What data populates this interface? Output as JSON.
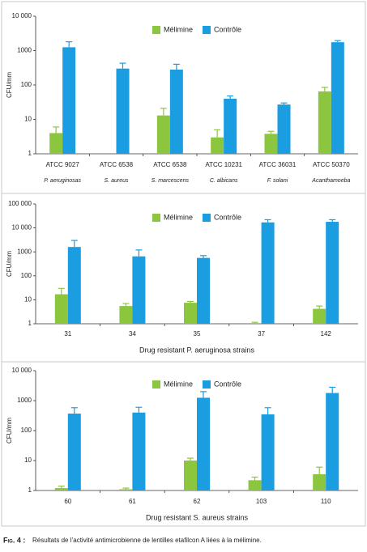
{
  "chart_data": [
    {
      "type": "bar",
      "y_label": "CFU/mm",
      "log_scale": true,
      "categories": [
        "ATCC 9027",
        "ATCC 6538",
        "ATCC 6538",
        "ATCC 10231",
        "ATCC 36031",
        "ATCC 50370"
      ],
      "species": [
        "P. aeruginosas",
        "S. aureus",
        "S. marcescens",
        "C. albicans",
        "F. solani",
        "Acanthamoeba"
      ],
      "series": [
        {
          "name": "Mélimine",
          "color": "#8cc63e",
          "values": [
            4,
            null,
            13,
            3,
            3.8,
            65
          ],
          "errors": [
            2,
            null,
            8,
            2,
            0.7,
            20
          ]
        },
        {
          "name": "Contrôle",
          "color": "#1b9de2",
          "values": [
            1250,
            300,
            280,
            40,
            27,
            1750
          ],
          "errors": [
            550,
            130,
            120,
            8,
            3,
            200
          ]
        }
      ],
      "ylim": [
        1,
        10000
      ],
      "yticks": [
        1,
        10,
        100,
        1000,
        {
          "value": 10000,
          "label": "10 000"
        }
      ]
    },
    {
      "type": "bar",
      "y_label": "CFU/mm",
      "x_label": "Drug resistant P. aeruginosa strains",
      "log_scale": true,
      "categories": [
        "31",
        "34",
        "35",
        "37",
        "142"
      ],
      "series": [
        {
          "name": "Mélimine",
          "color": "#8cc63e",
          "values": [
            17,
            5.5,
            7.5,
            1,
            4.2
          ],
          "errors": [
            13,
            1.5,
            1,
            0.15,
            1.3
          ]
        },
        {
          "name": "Contrôle",
          "color": "#1b9de2",
          "values": [
            1600,
            650,
            560,
            17000,
            18000
          ],
          "errors": [
            1400,
            550,
            140,
            5000,
            4000
          ]
        }
      ],
      "ylim": [
        1,
        100000
      ],
      "yticks": [
        1,
        10,
        100,
        1000,
        {
          "value": 10000,
          "label": "10 000"
        },
        {
          "value": 100000,
          "label": "100 000"
        }
      ]
    },
    {
      "type": "bar",
      "y_label": "CFU/mm",
      "x_label": "Drug resistant S. aureus strains",
      "log_scale": true,
      "categories": [
        "60",
        "61",
        "62",
        "103",
        "110"
      ],
      "series": [
        {
          "name": "Mélimine",
          "color": "#8cc63e",
          "values": [
            1.2,
            1.1,
            10,
            2.2,
            3.5
          ],
          "errors": [
            0.2,
            0.1,
            2,
            0.6,
            2.5
          ]
        },
        {
          "name": "Contrôle",
          "color": "#1b9de2",
          "values": [
            370,
            400,
            1250,
            350,
            1800
          ],
          "errors": [
            210,
            200,
            750,
            230,
            1000
          ]
        }
      ],
      "ylim": [
        1,
        10000
      ],
      "yticks": [
        1,
        10,
        100,
        1000,
        {
          "value": 10000,
          "label": "10 000"
        }
      ]
    }
  ],
  "caption": {
    "label": "Fig. 4 :",
    "text": "Résultats de l’activité antimicrobienne de lentilles etafilcon A liées à la mélimine."
  }
}
